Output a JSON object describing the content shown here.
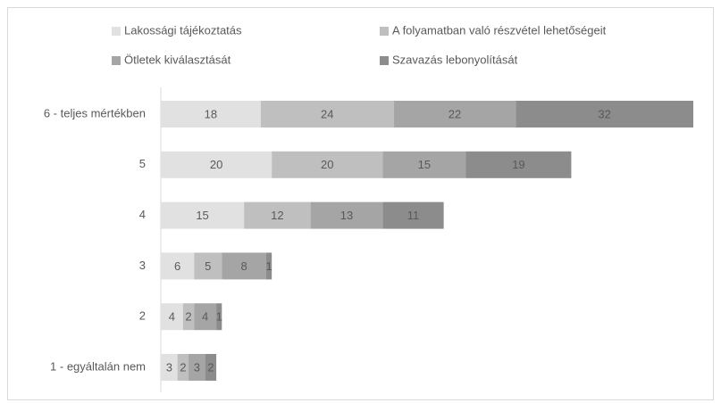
{
  "chart_data": {
    "type": "stacked-bar-horizontal",
    "categories": [
      "6 - teljes mértékben",
      "5",
      "4",
      "3",
      "2",
      "1 - egyáltalán nem"
    ],
    "series": [
      {
        "name": "Lakossági tájékoztatás",
        "color": "#e1e1e1",
        "values": [
          18,
          20,
          15,
          6,
          4,
          3
        ]
      },
      {
        "name": "A folyamatban való részvétel lehetőségeit",
        "color": "#bfbfbf",
        "values": [
          24,
          20,
          12,
          5,
          2,
          2
        ]
      },
      {
        "name": "Ötletek kiválasztását",
        "color": "#a5a5a5",
        "values": [
          22,
          15,
          13,
          8,
          4,
          3
        ]
      },
      {
        "name": "Szavazás lebonyolítását",
        "color": "#8c8c8c",
        "values": [
          32,
          19,
          11,
          1,
          1,
          2
        ]
      }
    ],
    "legend": "top"
  }
}
